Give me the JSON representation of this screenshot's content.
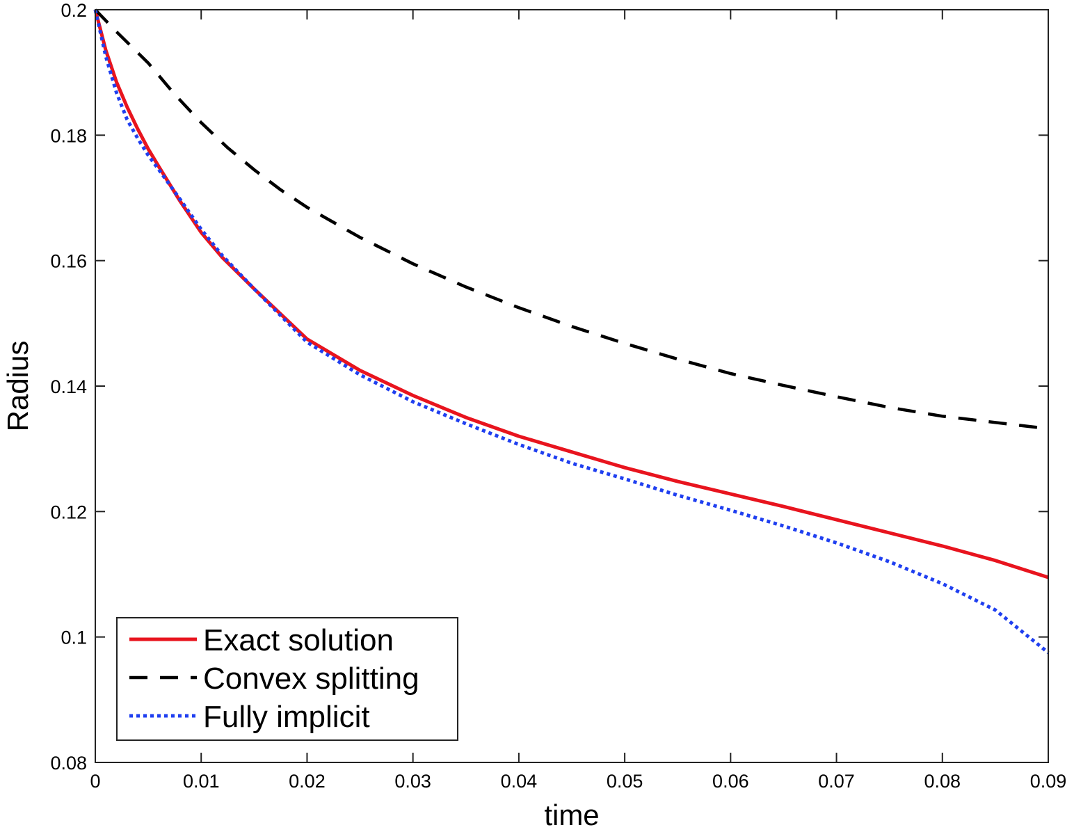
{
  "chart_data": {
    "type": "line",
    "title": "",
    "xlabel": "time",
    "ylabel": "Radius",
    "xlim": [
      0,
      0.09
    ],
    "ylim": [
      0.08,
      0.2
    ],
    "xticks": [
      0,
      0.01,
      0.02,
      0.03,
      0.04,
      0.05,
      0.06,
      0.07,
      0.08,
      0.09
    ],
    "xtick_labels": [
      "0",
      "0.01",
      "0.02",
      "0.03",
      "0.04",
      "0.05",
      "0.06",
      "0.07",
      "0.08",
      "0.09"
    ],
    "yticks": [
      0.08,
      0.1,
      0.12,
      0.14,
      0.16,
      0.18,
      0.2
    ],
    "ytick_labels": [
      "0.08",
      "0.1",
      "0.12",
      "0.14",
      "0.16",
      "0.18",
      "0.2"
    ],
    "grid": false,
    "legend_position": "bottom-left",
    "series": [
      {
        "name": "Exact solution",
        "color": "#e8141e",
        "style": "solid",
        "x": [
          0,
          0.001,
          0.002,
          0.003,
          0.004,
          0.005,
          0.006,
          0.008,
          0.01,
          0.012,
          0.015,
          0.02,
          0.025,
          0.03,
          0.035,
          0.04,
          0.045,
          0.05,
          0.055,
          0.06,
          0.065,
          0.07,
          0.075,
          0.08,
          0.085,
          0.09
        ],
        "y": [
          0.2,
          0.1935,
          0.1885,
          0.1845,
          0.181,
          0.1778,
          0.175,
          0.1695,
          0.1645,
          0.1605,
          0.1555,
          0.1475,
          0.1425,
          0.1385,
          0.135,
          0.132,
          0.1295,
          0.127,
          0.1248,
          0.1228,
          0.1208,
          0.1187,
          0.1166,
          0.1145,
          0.1122,
          0.1095
        ]
      },
      {
        "name": "Convex splitting",
        "color": "#000000",
        "style": "dashed",
        "x": [
          0,
          0.002,
          0.005,
          0.0075,
          0.01,
          0.0125,
          0.015,
          0.0175,
          0.02,
          0.025,
          0.03,
          0.035,
          0.04,
          0.045,
          0.05,
          0.055,
          0.06,
          0.065,
          0.07,
          0.075,
          0.08,
          0.085,
          0.09
        ],
        "y": [
          0.2,
          0.1965,
          0.1915,
          0.1865,
          0.182,
          0.178,
          0.1745,
          0.1713,
          0.1685,
          0.1637,
          0.1595,
          0.1558,
          0.1525,
          0.1495,
          0.1468,
          0.1443,
          0.142,
          0.1401,
          0.1383,
          0.1366,
          0.1352,
          0.1342,
          0.1332
        ]
      },
      {
        "name": "Fully implicit",
        "color": "#1f3ff0",
        "style": "dotted",
        "x": [
          0,
          0.001,
          0.002,
          0.003,
          0.004,
          0.005,
          0.006,
          0.008,
          0.01,
          0.012,
          0.015,
          0.02,
          0.025,
          0.03,
          0.035,
          0.04,
          0.045,
          0.05,
          0.055,
          0.06,
          0.065,
          0.07,
          0.075,
          0.08,
          0.085,
          0.09
        ],
        "y": [
          0.2,
          0.1925,
          0.1868,
          0.1825,
          0.1795,
          0.1768,
          0.1745,
          0.1698,
          0.165,
          0.1608,
          0.1555,
          0.147,
          0.1418,
          0.1375,
          0.134,
          0.1307,
          0.1277,
          0.1252,
          0.1226,
          0.1202,
          0.1177,
          0.115,
          0.112,
          0.1085,
          0.1043,
          0.0975
        ]
      }
    ]
  }
}
